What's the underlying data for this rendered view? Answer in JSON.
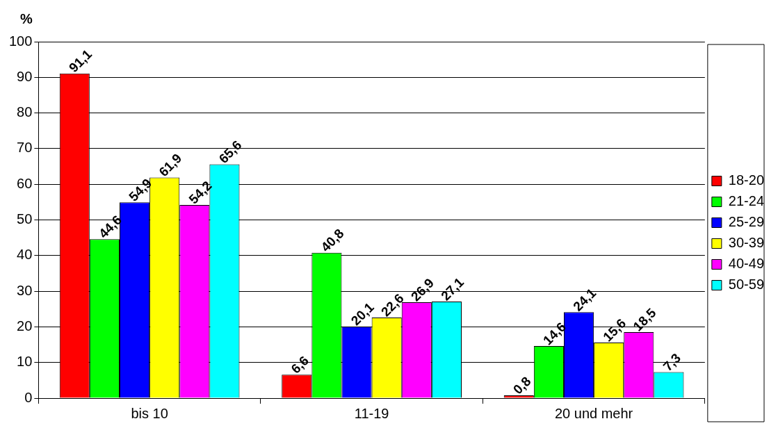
{
  "chart_data": {
    "type": "bar",
    "ylabel": "%",
    "categories": [
      "bis 10",
      "11-19",
      "20 und mehr"
    ],
    "series": [
      {
        "name": "18-20",
        "color": "#ff0000",
        "values": [
          91.1,
          6.6,
          0.8
        ],
        "value_labels": [
          "91,1",
          "6,6",
          "0,8"
        ]
      },
      {
        "name": "21-24",
        "color": "#00ff00",
        "values": [
          44.6,
          40.8,
          14.6
        ],
        "value_labels": [
          "44,6",
          "40,8",
          "14,6"
        ]
      },
      {
        "name": "25-29",
        "color": "#0000ff",
        "values": [
          54.9,
          20.1,
          24.1
        ],
        "value_labels": [
          "54,9",
          "20,1",
          "24,1"
        ]
      },
      {
        "name": "30-39",
        "color": "#ffff00",
        "values": [
          61.9,
          22.6,
          15.6
        ],
        "value_labels": [
          "61,9",
          "22,6",
          "15,6"
        ]
      },
      {
        "name": "40-49",
        "color": "#ff00ff",
        "values": [
          54.2,
          26.9,
          18.5
        ],
        "value_labels": [
          "54,2",
          "26,9",
          "18,5"
        ]
      },
      {
        "name": "50-59",
        "color": "#00ffff",
        "values": [
          65.6,
          27.1,
          7.3
        ],
        "value_labels": [
          "65,6",
          "27,1",
          "7,3"
        ]
      }
    ],
    "ylim": [
      0,
      100
    ],
    "yticks": [
      0,
      10,
      20,
      30,
      40,
      50,
      60,
      70,
      80,
      90,
      100
    ],
    "grid": "y",
    "legend": "right"
  }
}
